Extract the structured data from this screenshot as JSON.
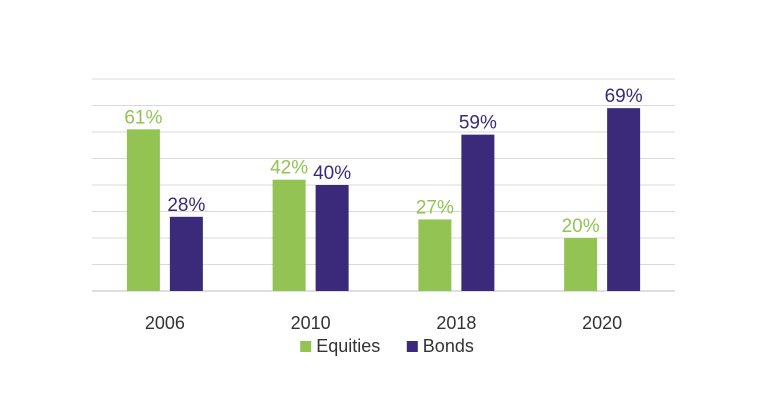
{
  "chart_data": {
    "type": "bar",
    "categories": [
      "2006",
      "2010",
      "2018",
      "2020"
    ],
    "series": [
      {
        "name": "Equities",
        "color": "#92c353",
        "values": [
          61,
          42,
          27,
          20
        ],
        "labels": [
          "61%",
          "42%",
          "27%",
          "20%"
        ]
      },
      {
        "name": "Bonds",
        "color": "#3b2a7a",
        "values": [
          28,
          40,
          59,
          69
        ],
        "labels": [
          "28%",
          "40%",
          "59%",
          "69%"
        ]
      }
    ],
    "title": "",
    "xlabel": "",
    "ylabel": "",
    "ylim": [
      0,
      80
    ],
    "grid": true,
    "legend": "bottom-center"
  },
  "colors": {
    "grid": "#d9d9d9",
    "axis": "#bfbfbf",
    "text": "#333333"
  }
}
